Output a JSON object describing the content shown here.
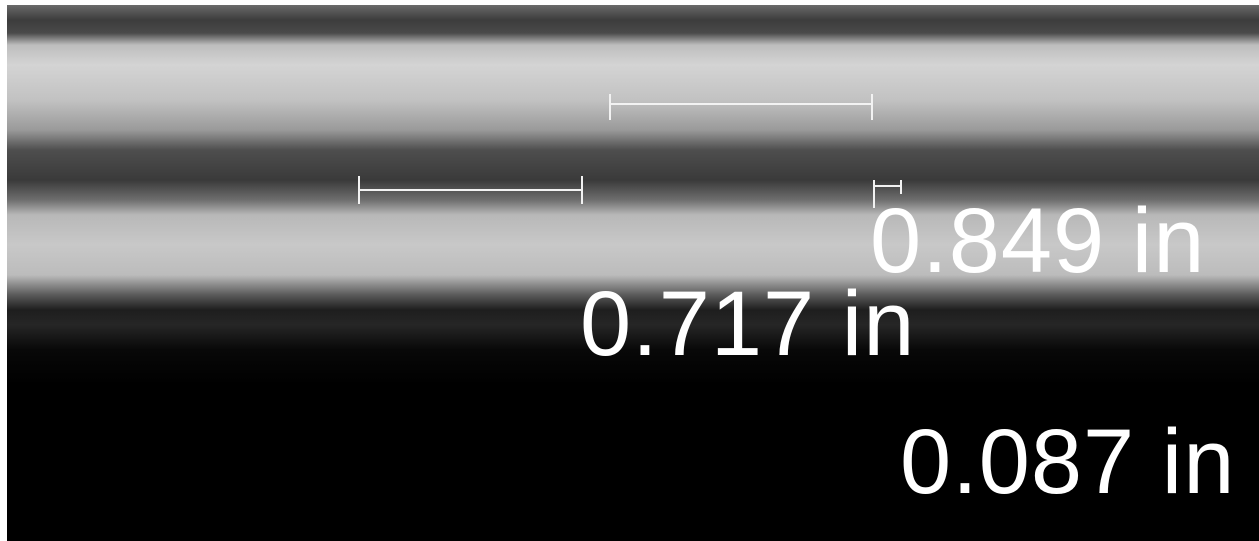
{
  "measurements": [
    {
      "label": "0.849 in"
    },
    {
      "label": "0.717 in"
    },
    {
      "label": "0.087 in"
    }
  ]
}
